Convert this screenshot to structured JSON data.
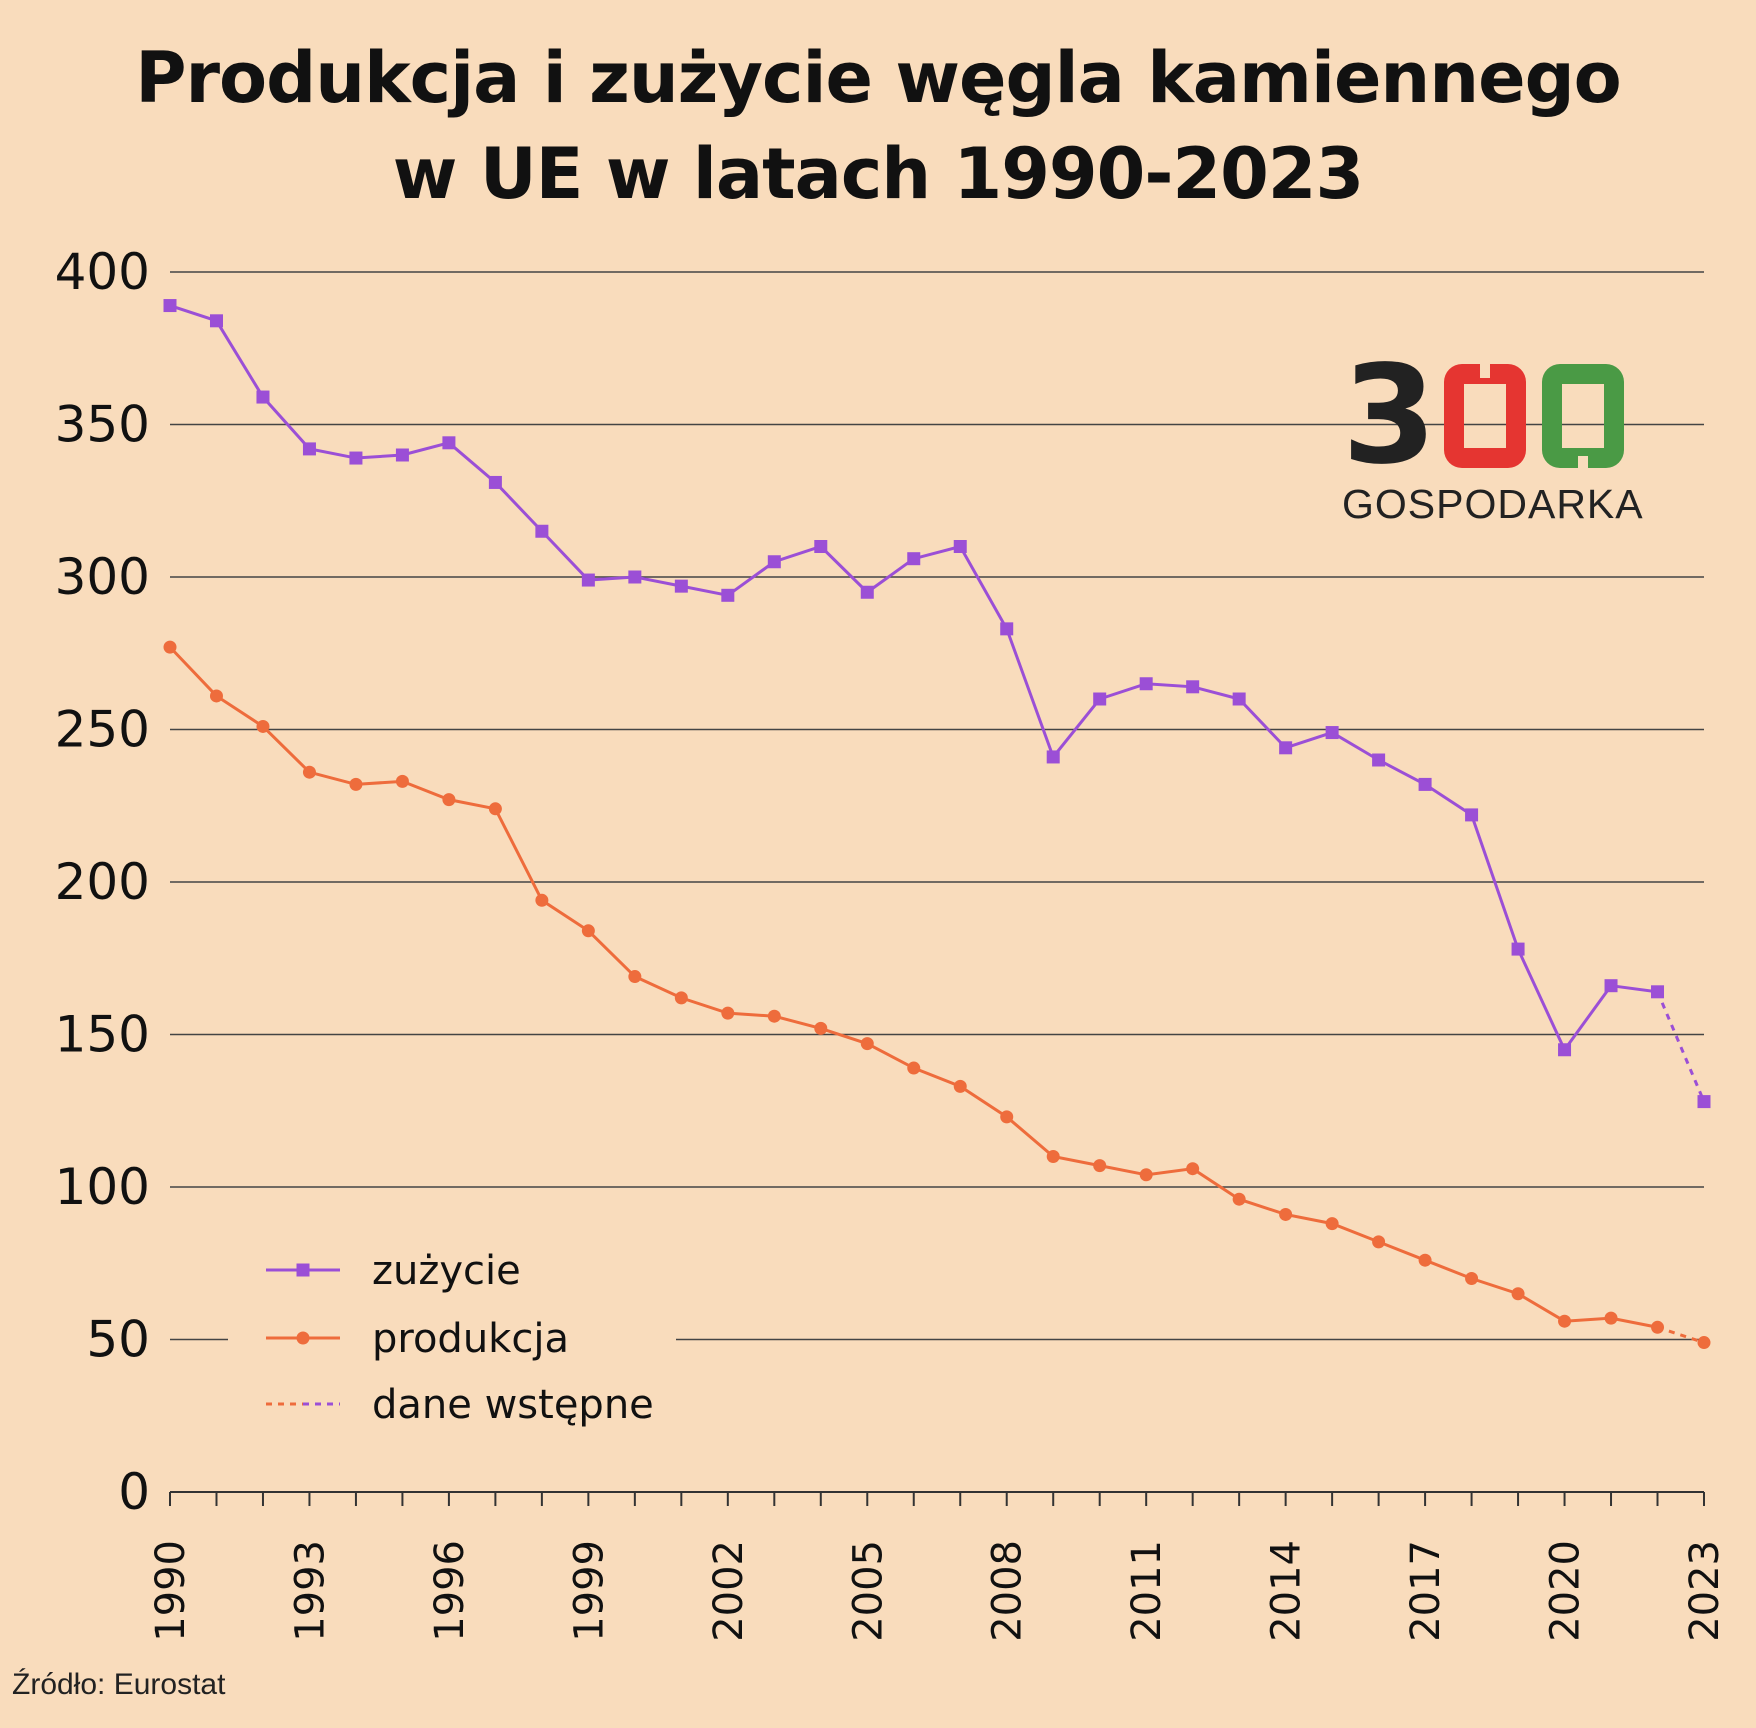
{
  "title_line1": "Produkcja i zużycie węgla kamiennego",
  "title_line2": "w UE w latach 1990-2023",
  "source": "Źródło: Eurostat",
  "logo": {
    "digit": "3",
    "text": "GOSPODARKA",
    "colors": [
      "#222222",
      "#e53531",
      "#4a9a45"
    ]
  },
  "colors": {
    "background": "#f9dcbc",
    "zuzycie": "#9b4fd6",
    "produkcja": "#ee6c3c",
    "grid": "#444444"
  },
  "chart_data": {
    "type": "line",
    "title": "Produkcja i zużycie węgla kamiennego w UE w latach 1990-2023",
    "xlabel": "",
    "ylabel": "",
    "ylim": [
      0,
      400
    ],
    "y_ticks": [
      "0",
      "50",
      "100",
      "150",
      "200",
      "250",
      "300",
      "350",
      "400"
    ],
    "x_tick_labels": [
      "1990",
      "1993",
      "1996",
      "1999",
      "2002",
      "2005",
      "2008",
      "2011",
      "2014",
      "2017",
      "2020",
      "2023"
    ],
    "grid": true,
    "legend_position": "bottom-left",
    "x": [
      1990,
      1991,
      1992,
      1993,
      1994,
      1995,
      1996,
      1997,
      1998,
      1999,
      2000,
      2001,
      2002,
      2003,
      2004,
      2005,
      2006,
      2007,
      2008,
      2009,
      2010,
      2011,
      2012,
      2013,
      2014,
      2015,
      2016,
      2017,
      2018,
      2019,
      2020,
      2021,
      2022,
      2023
    ],
    "series": [
      {
        "name": "zużycie",
        "marker": "square",
        "color": "#9b4fd6",
        "values": [
          389,
          384,
          359,
          342,
          339,
          340,
          344,
          331,
          315,
          299,
          300,
          297,
          294,
          305,
          310,
          295,
          306,
          310,
          283,
          241,
          260,
          265,
          264,
          260,
          244,
          249,
          240,
          232,
          222,
          178,
          145,
          166,
          164,
          128
        ]
      },
      {
        "name": "produkcja",
        "marker": "circle",
        "color": "#ee6c3c",
        "values": [
          277,
          261,
          251,
          236,
          232,
          233,
          227,
          224,
          194,
          184,
          169,
          162,
          157,
          156,
          152,
          147,
          139,
          133,
          123,
          110,
          107,
          104,
          106,
          96,
          91,
          88,
          82,
          76,
          70,
          65,
          56,
          57,
          54,
          49
        ]
      }
    ],
    "preliminary_from": 2022,
    "legend": [
      "zużycie",
      "produkcja",
      "dane wstępne"
    ]
  }
}
